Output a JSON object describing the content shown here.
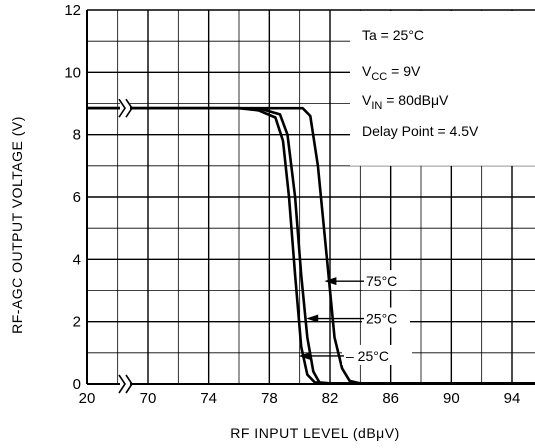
{
  "chart_data": {
    "type": "line",
    "xlabel": "RF INPUT LEVEL (dBμV)",
    "ylabel": "RF-AGC OUTPUT VOLTAGE (V)",
    "x_tick_labels": [
      "20",
      "70",
      "74",
      "78",
      "82",
      "86",
      "90",
      "94"
    ],
    "y_tick_labels": [
      "0",
      "2",
      "4",
      "6",
      "8",
      "10",
      "12"
    ],
    "ylim": [
      0,
      12
    ],
    "axis_break": "between 20 and 70 dBμV",
    "grid": true,
    "conditions": [
      {
        "label": "Ta",
        "sub": "",
        "value": "= 25°C"
      },
      {
        "label": "V",
        "sub": "CC",
        "value": "= 9V"
      },
      {
        "label": "V",
        "sub": "IN",
        "value": "= 80dBμV"
      },
      {
        "label": "Delay Point",
        "sub": "",
        "value": "= 4.5V"
      }
    ],
    "series": [
      {
        "name": "75°C",
        "x": [
          70,
          76,
          78.6,
          80.2,
          80.7,
          81.2,
          81.8,
          82.3,
          82.8,
          83.3,
          84,
          96
        ],
        "y": [
          8.85,
          8.85,
          8.85,
          8.85,
          8.6,
          7.0,
          4.0,
          1.5,
          0.5,
          0.1,
          0.02,
          0.02
        ]
      },
      {
        "name": "25°C",
        "x": [
          70,
          76,
          77.5,
          78.7,
          79.2,
          79.7,
          80.1,
          80.5,
          80.9,
          81.3,
          82,
          96
        ],
        "y": [
          8.85,
          8.85,
          8.82,
          8.65,
          8.0,
          6.0,
          3.5,
          1.5,
          0.4,
          0.05,
          0.02,
          0.02
        ]
      },
      {
        "name": "– 25°C",
        "x": [
          70,
          76,
          77.3,
          78.4,
          78.9,
          79.3,
          79.7,
          80.1,
          80.5,
          81,
          82,
          96
        ],
        "y": [
          8.85,
          8.85,
          8.78,
          8.55,
          7.8,
          6.0,
          3.5,
          1.2,
          0.3,
          0.05,
          0.02,
          0.02
        ]
      }
    ]
  }
}
